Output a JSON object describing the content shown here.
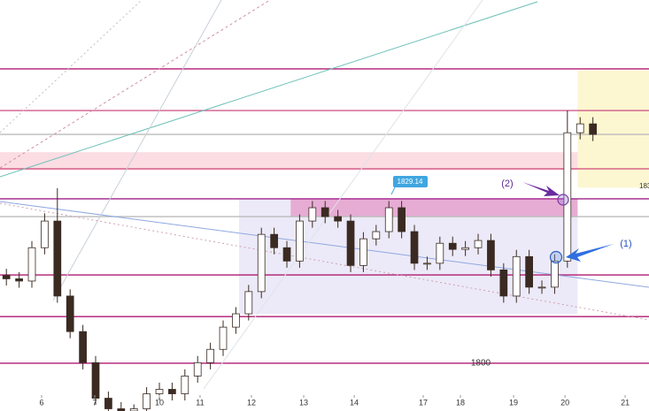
{
  "chart_data": {
    "type": "candlestick",
    "x": [
      0,
      1,
      2,
      3,
      4,
      5,
      6,
      7,
      8,
      9,
      10,
      11,
      12,
      13,
      14,
      15,
      16,
      17,
      18,
      19,
      20,
      21,
      22,
      23,
      24,
      25,
      26,
      27,
      28,
      29,
      30,
      31,
      32,
      33,
      34,
      35,
      36,
      37,
      38,
      39,
      40,
      41,
      42,
      43,
      44,
      45,
      46
    ],
    "open": [
      1815.8,
      1815.2,
      1814.8,
      1820.8,
      1825.6,
      1812.1,
      1805.7,
      1800.1,
      1793.7,
      1791.8,
      1791.4,
      1791.8,
      1794.5,
      1795.3,
      1794.5,
      1797.7,
      1800.1,
      1802.5,
      1806.5,
      1808.9,
      1812.9,
      1823.2,
      1820.8,
      1818.4,
      1825.6,
      1828.0,
      1826.4,
      1825.6,
      1817.6,
      1822.4,
      1823.7,
      1828.0,
      1823.7,
      1818.0,
      1818.0,
      1821.6,
      1820.5,
      1820.8,
      1822.1,
      1816.8,
      1812.1,
      1819.2,
      1813.7,
      1813.7,
      1818.4,
      1841.5,
      1843.1
    ],
    "high": [
      1817.0,
      1816.4,
      1822.0,
      1827.0,
      1831.5,
      1813.3,
      1806.9,
      1801.3,
      1794.9,
      1793.0,
      1792.6,
      1795.7,
      1796.5,
      1796.5,
      1798.9,
      1801.3,
      1803.7,
      1807.7,
      1810.1,
      1814.1,
      1824.4,
      1824.4,
      1822.0,
      1826.8,
      1829.2,
      1829.2,
      1827.6,
      1826.8,
      1823.6,
      1824.9,
      1829.2,
      1829.2,
      1824.9,
      1819.2,
      1822.8,
      1822.8,
      1822.0,
      1823.3,
      1823.3,
      1818.0,
      1820.4,
      1820.4,
      1814.9,
      1819.6,
      1845.5,
      1844.3,
      1844.3
    ],
    "low": [
      1814.0,
      1813.6,
      1813.6,
      1819.6,
      1810.9,
      1804.5,
      1798.9,
      1792.5,
      1790.6,
      1790.2,
      1790.2,
      1790.6,
      1793.3,
      1793.3,
      1793.3,
      1796.5,
      1798.9,
      1801.3,
      1805.3,
      1807.7,
      1811.7,
      1819.6,
      1817.2,
      1817.2,
      1824.4,
      1825.2,
      1824.4,
      1816.4,
      1816.4,
      1821.2,
      1822.5,
      1822.5,
      1816.8,
      1816.8,
      1816.8,
      1819.3,
      1819.3,
      1819.6,
      1815.6,
      1810.9,
      1810.9,
      1812.5,
      1812.5,
      1812.5,
      1817.2,
      1840.3,
      1840.0
    ],
    "close": [
      1815.2,
      1814.8,
      1820.8,
      1825.6,
      1812.1,
      1805.7,
      1800.1,
      1793.7,
      1791.8,
      1791.4,
      1791.8,
      1794.5,
      1795.3,
      1794.5,
      1797.7,
      1800.1,
      1802.5,
      1806.5,
      1808.9,
      1812.9,
      1823.2,
      1820.8,
      1818.4,
      1825.6,
      1828.0,
      1826.4,
      1825.6,
      1817.6,
      1822.4,
      1823.7,
      1828.0,
      1823.7,
      1818.0,
      1818.0,
      1821.6,
      1820.5,
      1820.8,
      1822.1,
      1816.8,
      1812.1,
      1819.2,
      1813.7,
      1813.7,
      1818.4,
      1841.5,
      1843.1,
      1841.2
    ],
    "up_color": "#ffffff",
    "down_color": "#3a2a22",
    "xlim": [
      -0.5,
      50.4
    ],
    "ylim": [
      1791.4,
      1865.4
    ],
    "xticks": [
      {
        "value": 2.76,
        "label": "6"
      },
      {
        "value": 6.93,
        "label": "7"
      },
      {
        "value": 12.0,
        "label": "10"
      },
      {
        "value": 15.19,
        "label": "11"
      },
      {
        "value": 19.22,
        "label": "12"
      },
      {
        "value": 23.32,
        "label": "13"
      },
      {
        "value": 27.28,
        "label": "14"
      },
      {
        "value": 32.69,
        "label": "17"
      },
      {
        "value": 35.61,
        "label": "18"
      },
      {
        "value": 39.78,
        "label": "19"
      },
      {
        "value": 43.81,
        "label": "20"
      },
      {
        "value": 48.53,
        "label": "21"
      }
    ],
    "levels": [
      {
        "value": 1853.0,
        "color": "#b01a72"
      },
      {
        "value": 1845.5,
        "color": "#d05a8a"
      },
      {
        "value": 1841.2,
        "color": "#bbbbbb"
      },
      {
        "value": 1835.0,
        "color": "#d0457a"
      },
      {
        "value": 1829.6,
        "color": "#a0208a"
      },
      {
        "value": 1826.4,
        "color": "#bbbbbb"
      },
      {
        "value": 1815.9,
        "color": "#b01a72"
      },
      {
        "value": 1808.4,
        "color": "#b01a72"
      },
      {
        "value": 1800.0,
        "color": "#b01a72"
      }
    ],
    "zones": [
      {
        "x": [
          -0.5,
          44.8
        ],
        "y": [
          1834.8,
          1838.0
        ],
        "color": "rgba(245,170,185,0.4)"
      },
      {
        "x": [
          18.25,
          44.8
        ],
        "y": [
          1808.9,
          1829.6
        ],
        "color": "rgba(200,195,235,0.35)"
      },
      {
        "x": [
          22.3,
          44.8
        ],
        "y": [
          1826.4,
          1829.6
        ],
        "color": "rgba(225,110,175,0.5)"
      },
      {
        "x": [
          44.8,
          50.4
        ],
        "y": [
          1831.6,
          1852.7
        ],
        "color": "rgba(250,240,170,0.55)"
      }
    ],
    "annotations": {
      "price_tag": "1829.14",
      "marker_2": "(2)",
      "marker_1": "(1)",
      "level_label": "1800",
      "right_label": "183"
    }
  }
}
